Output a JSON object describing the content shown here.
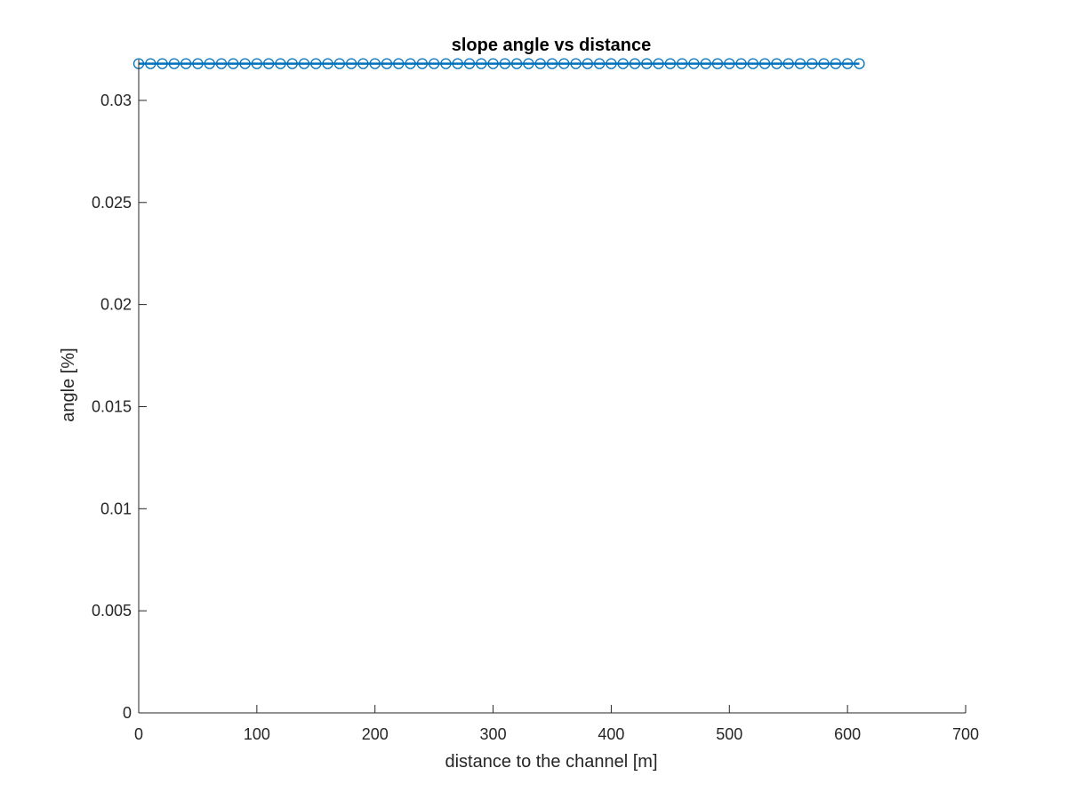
{
  "chart_data": {
    "type": "line",
    "title": "slope angle vs distance",
    "xlabel": "distance to the channel [m]",
    "ylabel": "angle [%]",
    "xlim": [
      0,
      700
    ],
    "ylim": [
      0,
      0.032
    ],
    "xticks": [
      0,
      100,
      200,
      300,
      400,
      500,
      600,
      700
    ],
    "xtick_labels": [
      "0",
      "100",
      "200",
      "300",
      "400",
      "500",
      "600",
      "700"
    ],
    "yticks": [
      0,
      0.005,
      0.01,
      0.015,
      0.02,
      0.025,
      0.03
    ],
    "ytick_labels": [
      "0",
      "0.005",
      "0.01",
      "0.015",
      "0.02",
      "0.025",
      "0.03"
    ],
    "grid": false,
    "legend": "none",
    "series": [
      {
        "marker": "circle",
        "color": "#0072BD",
        "x": [
          0,
          10,
          20,
          30,
          40,
          50,
          60,
          70,
          80,
          90,
          100,
          110,
          120,
          130,
          140,
          150,
          160,
          170,
          180,
          190,
          200,
          210,
          220,
          230,
          240,
          250,
          260,
          270,
          280,
          290,
          300,
          310,
          320,
          330,
          340,
          350,
          360,
          370,
          380,
          390,
          400,
          410,
          420,
          430,
          440,
          450,
          460,
          470,
          480,
          490,
          500,
          510,
          520,
          530,
          540,
          550,
          560,
          570,
          580,
          590,
          600,
          610
        ],
        "y": [
          0.0318,
          0.0318,
          0.0318,
          0.0318,
          0.0318,
          0.0318,
          0.0318,
          0.0318,
          0.0318,
          0.0318,
          0.0318,
          0.0318,
          0.0318,
          0.0318,
          0.0318,
          0.0318,
          0.0318,
          0.0318,
          0.0318,
          0.0318,
          0.0318,
          0.0318,
          0.0318,
          0.0318,
          0.0318,
          0.0318,
          0.0318,
          0.0318,
          0.0318,
          0.0318,
          0.0318,
          0.0318,
          0.0318,
          0.0318,
          0.0318,
          0.0318,
          0.0318,
          0.0318,
          0.0318,
          0.0318,
          0.0318,
          0.0318,
          0.0318,
          0.0318,
          0.0318,
          0.0318,
          0.0318,
          0.0318,
          0.0318,
          0.0318,
          0.0318,
          0.0318,
          0.0318,
          0.0318,
          0.0318,
          0.0318,
          0.0318,
          0.0318,
          0.0318,
          0.0318,
          0.0318,
          0.0318
        ]
      }
    ]
  }
}
